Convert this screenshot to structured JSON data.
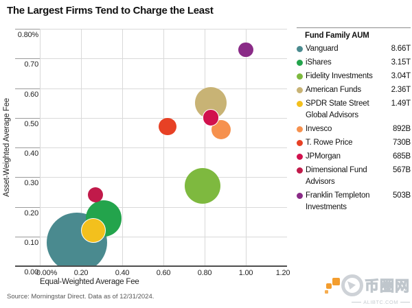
{
  "page": {
    "title": "The Largest Firms Tend to Charge the Least",
    "source": "Source: Morningstar Direct. Data as of 12/31/2024."
  },
  "legend": {
    "header": "Fund Family AUM"
  },
  "watermark": {
    "cn": "币圈网",
    "site": "ALIBTC.COM"
  },
  "chart_data": {
    "type": "scatter",
    "subtype": "bubble",
    "title": "The Largest Firms Tend to Charge the Least",
    "xlabel": "Equal-Weighted Average Fee",
    "ylabel": "Asset-Weighted Average Fee",
    "xlim": [
      0,
      1.2
    ],
    "ylim": [
      0,
      0.8
    ],
    "grid": true,
    "legend_position": "right",
    "size_by": "AUM (billions USD)",
    "xticks": [
      {
        "v": 0.0,
        "label": "0.00%"
      },
      {
        "v": 0.2,
        "label": "0.20"
      },
      {
        "v": 0.4,
        "label": "0.40"
      },
      {
        "v": 0.6,
        "label": "0.60"
      },
      {
        "v": 0.8,
        "label": "0.80"
      },
      {
        "v": 1.0,
        "label": "1.00"
      },
      {
        "v": 1.2,
        "label": "1.20"
      }
    ],
    "yticks": [
      {
        "v": 0.8,
        "label": "0.80%"
      },
      {
        "v": 0.7,
        "label": "0.70"
      },
      {
        "v": 0.6,
        "label": "0.60"
      },
      {
        "v": 0.5,
        "label": "0.50"
      },
      {
        "v": 0.4,
        "label": "0.40"
      },
      {
        "v": 0.3,
        "label": "0.30"
      },
      {
        "v": 0.2,
        "label": "0.20"
      },
      {
        "v": 0.1,
        "label": "0.10"
      },
      {
        "v": 0.0,
        "label": "0.00"
      }
    ],
    "points": [
      {
        "name": "Vanguard",
        "aum_label": "8.66T",
        "aum_billions": 8660,
        "x": 0.18,
        "y": 0.08,
        "color": "#4A8A8F"
      },
      {
        "name": "iShares",
        "aum_label": "3.15T",
        "aum_billions": 3150,
        "x": 0.31,
        "y": 0.16,
        "color": "#23A44C"
      },
      {
        "name": "Fidelity Investments",
        "aum_label": "3.04T",
        "aum_billions": 3040,
        "x": 0.79,
        "y": 0.27,
        "color": "#7EB93F"
      },
      {
        "name": "American Funds",
        "aum_label": "2.36T",
        "aum_billions": 2360,
        "x": 0.83,
        "y": 0.55,
        "color": "#C8B375"
      },
      {
        "name": "SPDR State Street Global Advisors",
        "aum_label": "1.49T",
        "aum_billions": 1490,
        "x": 0.26,
        "y": 0.12,
        "color": "#F3C01D",
        "stroke": "#FFFFFF"
      },
      {
        "name": "Invesco",
        "aum_label": "892B",
        "aum_billions": 892,
        "x": 0.88,
        "y": 0.46,
        "color": "#F6914E"
      },
      {
        "name": "T. Rowe Price",
        "aum_label": "730B",
        "aum_billions": 730,
        "x": 0.62,
        "y": 0.47,
        "color": "#E74125"
      },
      {
        "name": "JPMorgan",
        "aum_label": "685B",
        "aum_billions": 685,
        "x": 0.83,
        "y": 0.5,
        "color": "#D1114D",
        "stroke": "#FFFFFF"
      },
      {
        "name": "Dimensional Fund Advisors",
        "aum_label": "567B",
        "aum_billions": 567,
        "x": 0.27,
        "y": 0.24,
        "color": "#C11A4A"
      },
      {
        "name": "Franklin Templeton Investments",
        "aum_label": "503B",
        "aum_billions": 503,
        "x": 1.0,
        "y": 0.73,
        "color": "#8A2B87"
      }
    ]
  }
}
